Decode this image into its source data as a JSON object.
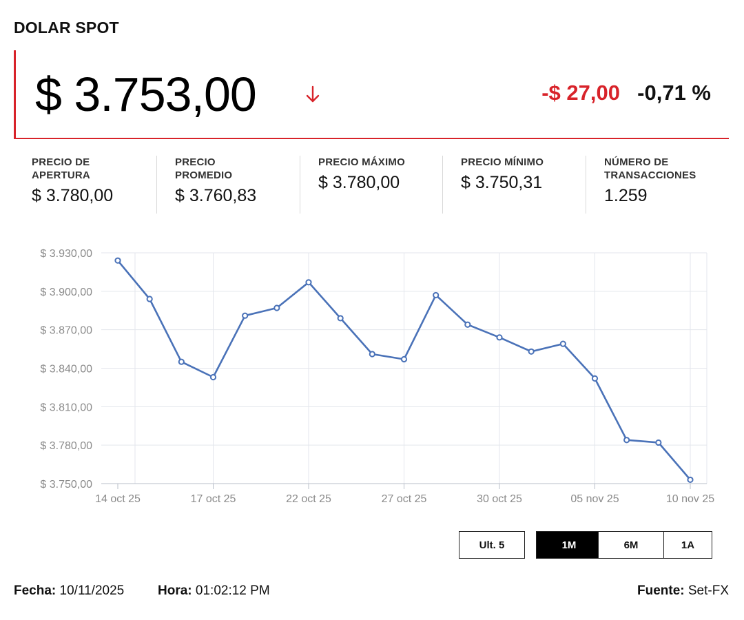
{
  "title": "DOLAR SPOT",
  "price": {
    "value": "$ 3.753,00",
    "direction_icon": "arrow-down-icon",
    "change": "-$ 27,00",
    "change_pct": "-0,71 %",
    "negative_color": "#d8232a"
  },
  "stats": [
    {
      "label_line1": "PRECIO DE",
      "label_line2": "APERTURA",
      "value": "$ 3.780,00"
    },
    {
      "label_line1": "PRECIO",
      "label_line2": "PROMEDIO",
      "value": "$ 3.760,83"
    },
    {
      "label_line1": "PRECIO MÁXIMO",
      "label_line2": "",
      "value": "$ 3.780,00"
    },
    {
      "label_line1": "PRECIO MÍNIMO",
      "label_line2": "",
      "value": "$ 3.750,31"
    },
    {
      "label_line1": "NÚMERO DE",
      "label_line2": "TRANSACCIONES",
      "value": "1.259"
    }
  ],
  "chart_data": {
    "type": "line",
    "line_color": "#4a72b8",
    "grid": true,
    "ylim": [
      3750,
      3930
    ],
    "yticks": [
      3750,
      3780,
      3810,
      3840,
      3870,
      3900,
      3930
    ],
    "ytick_labels": [
      "$ 3.750,00",
      "$ 3.780,00",
      "$ 3.810,00",
      "$ 3.840,00",
      "$ 3.870,00",
      "$ 3.900,00",
      "$ 3.930,00"
    ],
    "xtick_labels": [
      "14 oct 25",
      "17 oct 25",
      "22 oct 25",
      "27 oct 25",
      "30 oct 25",
      "05 nov 25",
      "10 nov 25"
    ],
    "xtick_indices": [
      0,
      3,
      6,
      9,
      12,
      15,
      18
    ],
    "series": [
      {
        "values": [
          3924,
          3894,
          3845,
          3833,
          3881,
          3887,
          3907,
          3879,
          3851,
          3847,
          3897,
          3874,
          3864,
          3853,
          3859,
          3832,
          3784,
          3782,
          3753
        ]
      }
    ]
  },
  "ranges": {
    "buttons": [
      "Ult. 5",
      "1M",
      "6M",
      "1A"
    ],
    "active": "1M"
  },
  "footer": {
    "fecha_label": "Fecha:",
    "fecha_value": "10/11/2025",
    "hora_label": "Hora:",
    "hora_value": "01:02:12 PM",
    "fuente_label": "Fuente:",
    "fuente_value": "Set-FX"
  }
}
